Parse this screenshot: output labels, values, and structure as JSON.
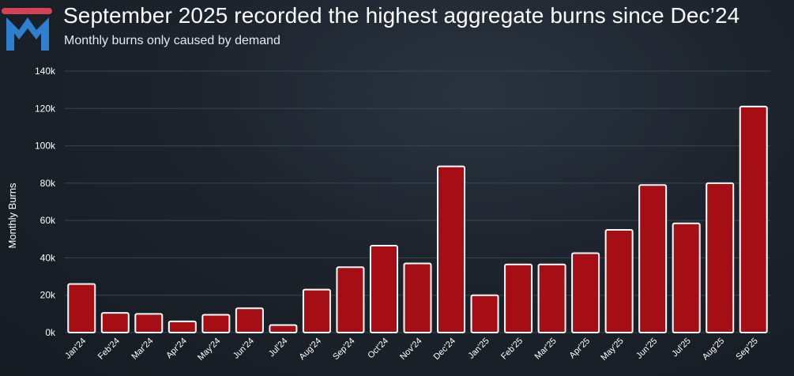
{
  "header": {
    "title": "September 2025 recorded the highest aggregate burns since Dec’24",
    "subtitle": "Monthly burns only caused by demand"
  },
  "logo": {
    "icon": "brand-logo-icon",
    "color": "#2f7fd1"
  },
  "colors": {
    "bar_fill": "#a50e14",
    "bar_stroke": "#ffffff",
    "gridline": "#3a4450",
    "text": "#ffffff"
  },
  "chart_data": {
    "type": "bar",
    "title": "September 2025 recorded the highest aggregate burns since Dec’24",
    "subtitle": "Monthly burns only caused by demand",
    "xlabel": "",
    "ylabel": "Monthly Burns",
    "ylim": [
      0,
      140000
    ],
    "yticks": [
      0,
      20000,
      40000,
      60000,
      80000,
      100000,
      120000,
      140000
    ],
    "ytick_labels": [
      "0k",
      "20k",
      "40k",
      "60k",
      "80k",
      "100k",
      "120k",
      "140k"
    ],
    "grid": true,
    "legend": "none",
    "categories": [
      "Jan'24",
      "Feb'24",
      "Mar'24",
      "Apr'24",
      "May'24",
      "Jun'24",
      "Jul'24",
      "Aug'24",
      "Sep'24",
      "Oct'24",
      "Nov'24",
      "Dec'24",
      "Jan'25",
      "Feb'25",
      "Mar'25",
      "Apr'25",
      "May'25",
      "Jun'25",
      "Jul'25",
      "Aug'25",
      "Sep'25"
    ],
    "values": [
      26000,
      10500,
      10000,
      6000,
      9500,
      13000,
      4000,
      23000,
      35000,
      46500,
      37000,
      89000,
      20000,
      36500,
      36500,
      42500,
      55000,
      79000,
      58500,
      80000,
      121000
    ]
  }
}
